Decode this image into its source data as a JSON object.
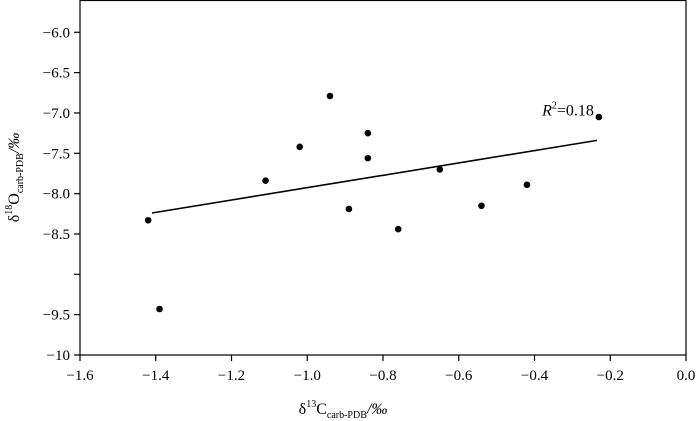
{
  "chart_data": {
    "type": "scatter",
    "title": "",
    "xlabel": {
      "base": "δ",
      "sup": "13",
      "main": "C",
      "sub": "carb-PDB",
      "unit": "/‰"
    },
    "ylabel": {
      "base": "δ",
      "sup": "18",
      "main": "O",
      "sub": "carb-PDB",
      "unit": "/‰"
    },
    "xlim": [
      -1.6,
      0.0
    ],
    "ylim": [
      -10,
      -5.6
    ],
    "x_ticks": [
      -1.6,
      -1.4,
      -1.2,
      -1.0,
      -0.8,
      -0.6,
      -0.4,
      -0.2,
      0.0
    ],
    "x_tick_labels": [
      "−1.6",
      "−1.4",
      "−1.2",
      "−1.0",
      "−0.8",
      "−0.6",
      "−0.4",
      "−0.2",
      "0.0"
    ],
    "y_ticks": [
      -10,
      -9.5,
      -9.0,
      -8.5,
      -8.0,
      -7.5,
      -7.0,
      -6.5,
      -6.0
    ],
    "y_tick_labels": [
      "−10",
      "−9.5",
      "",
      "−8.5",
      "−8.0",
      "−7.5",
      "−7.0",
      "−6.5",
      "−6.0"
    ],
    "grid": false,
    "points": [
      {
        "x": -1.42,
        "y": -8.33
      },
      {
        "x": -1.39,
        "y": -9.43
      },
      {
        "x": -1.11,
        "y": -7.84
      },
      {
        "x": -1.02,
        "y": -7.42
      },
      {
        "x": -0.94,
        "y": -6.79
      },
      {
        "x": -0.89,
        "y": -8.19
      },
      {
        "x": -0.84,
        "y": -7.25
      },
      {
        "x": -0.84,
        "y": -7.56
      },
      {
        "x": -0.76,
        "y": -8.44
      },
      {
        "x": -0.65,
        "y": -7.7
      },
      {
        "x": -0.54,
        "y": -8.15
      },
      {
        "x": -0.42,
        "y": -7.89
      },
      {
        "x": -0.23,
        "y": -7.05
      }
    ],
    "trendline": {
      "x": [
        -1.41,
        -0.235
      ],
      "y": [
        -8.24,
        -7.34
      ]
    },
    "annotation": {
      "italic": "R",
      "sup": "2",
      "text": "=0.18",
      "x": -0.38,
      "y": -7.03
    }
  }
}
